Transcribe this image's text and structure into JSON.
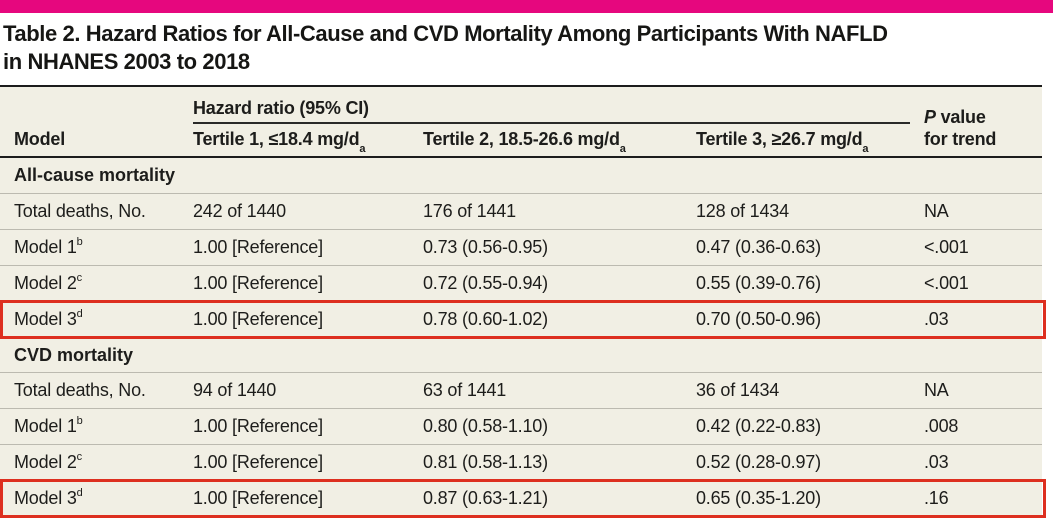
{
  "colors": {
    "brand_bar": "#e6077e",
    "highlight_red": "#dd2f1f",
    "row_background": "#f1efe4",
    "rule": "#1c1c1c",
    "separator": "#bcbab0"
  },
  "title": {
    "line1": "Table 2. Hazard Ratios for All-Cause and CVD Mortality Among Participants With NAFLD",
    "line2": "in NHANES 2003 to 2018"
  },
  "header": {
    "group": "Hazard ratio (95% CI)",
    "model": "Model",
    "col1": {
      "text": "Tertile 1, ≤18.4 mg/d",
      "sup": "a"
    },
    "col2": {
      "text": "Tertile 2, 18.5-26.6 mg/d",
      "sup": "a"
    },
    "col3": {
      "text": "Tertile 3, ≥26.7 mg/d",
      "sup": "a"
    },
    "pvalue": {
      "italic": "P",
      "rest": " value",
      "line2": "for trend"
    }
  },
  "sections": [
    {
      "name": "All-cause mortality",
      "rows": [
        {
          "label": "Total deaths, No.",
          "sup": "",
          "c1": "242 of 1440",
          "c2": "176 of 1441",
          "c3": "128 of 1434",
          "p": "NA"
        },
        {
          "label": "Model 1",
          "sup": "b",
          "c1": "1.00 [Reference]",
          "c2": "0.73 (0.56-0.95)",
          "c3": "0.47 (0.36-0.63)",
          "p": "<.001"
        },
        {
          "label": "Model 2",
          "sup": "c",
          "c1": "1.00 [Reference]",
          "c2": "0.72 (0.55-0.94)",
          "c3": "0.55 (0.39-0.76)",
          "p": "<.001"
        },
        {
          "label": "Model 3",
          "sup": "d",
          "c1": "1.00 [Reference]",
          "c2": "0.78 (0.60-1.02)",
          "c3": "0.70 (0.50-0.96)",
          "p": ".03",
          "highlighted": true
        }
      ]
    },
    {
      "name": "CVD mortality",
      "rows": [
        {
          "label": "Total deaths, No.",
          "sup": "",
          "c1": "94 of 1440",
          "c2": "63 of 1441",
          "c3": "36 of 1434",
          "p": "NA"
        },
        {
          "label": "Model 1",
          "sup": "b",
          "c1": "1.00 [Reference]",
          "c2": "0.80 (0.58-1.10)",
          "c3": "0.42 (0.22-0.83)",
          "p": ".008"
        },
        {
          "label": "Model 2",
          "sup": "c",
          "c1": "1.00 [Reference]",
          "c2": "0.81 (0.58-1.13)",
          "c3": "0.52 (0.28-0.97)",
          "p": ".03"
        },
        {
          "label": "Model 3",
          "sup": "d",
          "c1": "1.00 [Reference]",
          "c2": "0.87 (0.63-1.21)",
          "c3": "0.65 (0.35-1.20)",
          "p": ".16",
          "highlighted": true
        }
      ]
    }
  ]
}
